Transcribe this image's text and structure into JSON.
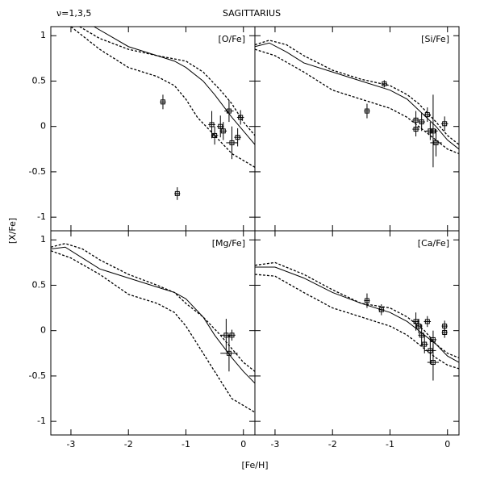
{
  "figure": {
    "title": "SAGITTARIUS",
    "annotation": "ν=1,3,5",
    "xlabel": "[Fe/H]",
    "ylabel": "[X/Fe]"
  },
  "chart_data": [
    {
      "type": "line",
      "label": "[O/Fe]",
      "color": "#000000",
      "xlim": [
        -3.35,
        0.2
      ],
      "ylim": [
        -1.15,
        1.1
      ],
      "xticks": [
        -3,
        -2,
        -1,
        0
      ],
      "yticks": [
        -1,
        -0.5,
        0,
        0.5,
        1
      ],
      "series": [
        {
          "style": "dashed",
          "x": [
            -2.85,
            -2.5,
            -2,
            -1.5,
            -1,
            -0.7,
            -0.4,
            -0.2,
            0,
            0.2
          ],
          "values": [
            1.1,
            0.97,
            0.85,
            0.78,
            0.72,
            0.6,
            0.4,
            0.25,
            0.05,
            -0.1
          ]
        },
        {
          "style": "solid",
          "x": [
            -2.6,
            -2,
            -1.5,
            -1.2,
            -1,
            -0.7,
            -0.5,
            -0.2,
            0,
            0.2
          ],
          "values": [
            1.1,
            0.88,
            0.78,
            0.72,
            0.65,
            0.5,
            0.35,
            0.1,
            -0.05,
            -0.2
          ]
        },
        {
          "style": "dashed",
          "x": [
            -3.0,
            -2.5,
            -2,
            -1.5,
            -1.2,
            -1,
            -0.8,
            -0.5,
            -0.2,
            0.2
          ],
          "values": [
            1.1,
            0.85,
            0.65,
            0.55,
            0.45,
            0.3,
            0.1,
            -0.1,
            -0.3,
            -0.45
          ]
        }
      ],
      "points": {
        "x": [
          -1.4,
          -1.15,
          -0.55,
          -0.5,
          -0.4,
          -0.35,
          -0.25,
          -0.2,
          -0.1,
          -0.05
        ],
        "values": [
          0.27,
          -0.74,
          0.02,
          -0.1,
          0,
          -0.05,
          0.17,
          -0.18,
          -0.12,
          0.1
        ],
        "xerr": [
          0.05,
          0.05,
          0.06,
          0.06,
          0.06,
          0.06,
          0.08,
          0.1,
          0.06,
          0.06
        ],
        "yerr": [
          0.08,
          0.07,
          0.15,
          0.1,
          0.12,
          0.1,
          0.12,
          0.18,
          0.1,
          0.08
        ]
      }
    },
    {
      "type": "line",
      "label": "[Si/Fe]",
      "color": "#000000",
      "xlim": [
        -3.35,
        0.2
      ],
      "ylim": [
        -1.15,
        1.1
      ],
      "xticks": [
        -3,
        -2,
        -1,
        0
      ],
      "yticks": [
        -1,
        -0.5,
        0,
        0.5,
        1
      ],
      "series": [
        {
          "style": "dashed",
          "x": [
            -3.35,
            -3.1,
            -2.8,
            -2.5,
            -2,
            -1.5,
            -1,
            -0.7,
            -0.5,
            -0.2,
            0,
            0.2
          ],
          "values": [
            0.9,
            0.95,
            0.9,
            0.78,
            0.62,
            0.52,
            0.45,
            0.35,
            0.25,
            0.05,
            -0.1,
            -0.2
          ]
        },
        {
          "style": "solid",
          "x": [
            -3.35,
            -3.1,
            -2.8,
            -2.5,
            -2,
            -1.5,
            -1,
            -0.7,
            -0.5,
            -0.2,
            0,
            0.2
          ],
          "values": [
            0.88,
            0.92,
            0.82,
            0.7,
            0.6,
            0.5,
            0.4,
            0.3,
            0.18,
            0,
            -0.15,
            -0.25
          ]
        },
        {
          "style": "dashed",
          "x": [
            -3.35,
            -3,
            -2.5,
            -2,
            -1.5,
            -1,
            -0.7,
            -0.5,
            -0.2,
            0,
            0.2
          ],
          "values": [
            0.85,
            0.78,
            0.6,
            0.4,
            0.3,
            0.2,
            0.1,
            0,
            -0.15,
            -0.25,
            -0.3
          ]
        }
      ],
      "points": {
        "x": [
          -1.4,
          -1.1,
          -0.55,
          -0.55,
          -0.45,
          -0.35,
          -0.3,
          -0.25,
          -0.2,
          -0.05
        ],
        "values": [
          0.17,
          0.47,
          0.07,
          -0.03,
          0.05,
          0.13,
          -0.05,
          -0.05,
          -0.18,
          0.03
        ],
        "xerr": [
          0.05,
          0.05,
          0.06,
          0.06,
          0.06,
          0.06,
          0.08,
          0.08,
          0.1,
          0.06
        ],
        "yerr": [
          0.08,
          0.04,
          0.1,
          0.08,
          0.1,
          0.08,
          0.1,
          0.4,
          0.15,
          0.08
        ]
      }
    },
    {
      "type": "line",
      "label": "[Mg/Fe]",
      "color": "#000000",
      "xlim": [
        -3.35,
        0.2
      ],
      "ylim": [
        -1.15,
        1.1
      ],
      "xticks": [
        -3,
        -2,
        -1,
        0
      ],
      "yticks": [
        -1,
        -0.5,
        0,
        0.5,
        1
      ],
      "series": [
        {
          "style": "dashed",
          "x": [
            -3.35,
            -3.1,
            -2.8,
            -2.5,
            -2,
            -1.5,
            -1.2,
            -1,
            -0.7,
            -0.4,
            -0.2,
            0,
            0.2
          ],
          "values": [
            0.92,
            0.96,
            0.9,
            0.78,
            0.62,
            0.5,
            0.42,
            0.3,
            0.15,
            -0.05,
            -0.2,
            -0.35,
            -0.45
          ]
        },
        {
          "style": "solid",
          "x": [
            -3.35,
            -3.1,
            -2.8,
            -2.5,
            -2,
            -1.5,
            -1.2,
            -1,
            -0.7,
            -0.5,
            -0.2,
            0,
            0.2
          ],
          "values": [
            0.9,
            0.92,
            0.8,
            0.68,
            0.58,
            0.48,
            0.42,
            0.35,
            0.15,
            -0.05,
            -0.3,
            -0.45,
            -0.58
          ]
        },
        {
          "style": "dashed",
          "x": [
            -3.35,
            -3,
            -2.5,
            -2,
            -1.5,
            -1.2,
            -1,
            -0.8,
            -0.5,
            -0.2,
            0.2
          ],
          "values": [
            0.88,
            0.8,
            0.62,
            0.4,
            0.3,
            0.2,
            0.05,
            -0.15,
            -0.45,
            -0.75,
            -0.9
          ]
        }
      ],
      "points": {
        "x": [
          -0.3,
          -0.25,
          -0.2
        ],
        "values": [
          -0.05,
          -0.25,
          -0.05
        ],
        "xerr": [
          0.1,
          0.15,
          0.06
        ],
        "yerr": [
          0.18,
          0.2,
          0.06
        ]
      }
    },
    {
      "type": "line",
      "label": "[Ca/Fe]",
      "color": "#000000",
      "xlim": [
        -3.35,
        0.2
      ],
      "ylim": [
        -1.15,
        1.1
      ],
      "xticks": [
        -3,
        -2,
        -1,
        0
      ],
      "yticks": [
        -1,
        -0.5,
        0,
        0.5,
        1
      ],
      "series": [
        {
          "style": "dashed",
          "x": [
            -3.35,
            -3,
            -2.5,
            -2,
            -1.5,
            -1,
            -0.7,
            -0.4,
            -0.2,
            0,
            0.2
          ],
          "values": [
            0.72,
            0.75,
            0.62,
            0.45,
            0.3,
            0.25,
            0.15,
            0,
            -0.15,
            -0.25,
            -0.3
          ]
        },
        {
          "style": "solid",
          "x": [
            -3.35,
            -3,
            -2.5,
            -2,
            -1.5,
            -1,
            -0.7,
            -0.4,
            -0.2,
            0,
            0.2
          ],
          "values": [
            0.7,
            0.7,
            0.58,
            0.42,
            0.3,
            0.2,
            0.1,
            -0.05,
            -0.15,
            -0.28,
            -0.35
          ]
        },
        {
          "style": "dashed",
          "x": [
            -3.35,
            -3,
            -2.5,
            -2,
            -1.5,
            -1,
            -0.7,
            -0.4,
            -0.2,
            0,
            0.2
          ],
          "values": [
            0.62,
            0.6,
            0.42,
            0.25,
            0.15,
            0.05,
            -0.05,
            -0.2,
            -0.3,
            -0.38,
            -0.42
          ]
        }
      ],
      "points": {
        "x": [
          -1.4,
          -1.15,
          -0.55,
          -0.5,
          -0.45,
          -0.4,
          -0.35,
          -0.3,
          -0.25,
          -0.25,
          -0.05,
          -0.05
        ],
        "values": [
          0.33,
          0.23,
          0.1,
          0.05,
          -0.05,
          -0.15,
          0.1,
          -0.22,
          -0.35,
          -0.1,
          0.05,
          -0.02
        ],
        "xerr": [
          0.05,
          0.05,
          0.06,
          0.06,
          0.06,
          0.06,
          0.06,
          0.1,
          0.1,
          0.06,
          0.05,
          0.05
        ],
        "yerr": [
          0.08,
          0.06,
          0.1,
          0.08,
          0.12,
          0.1,
          0.06,
          0.15,
          0.2,
          0.1,
          0.06,
          0.06
        ]
      }
    }
  ]
}
